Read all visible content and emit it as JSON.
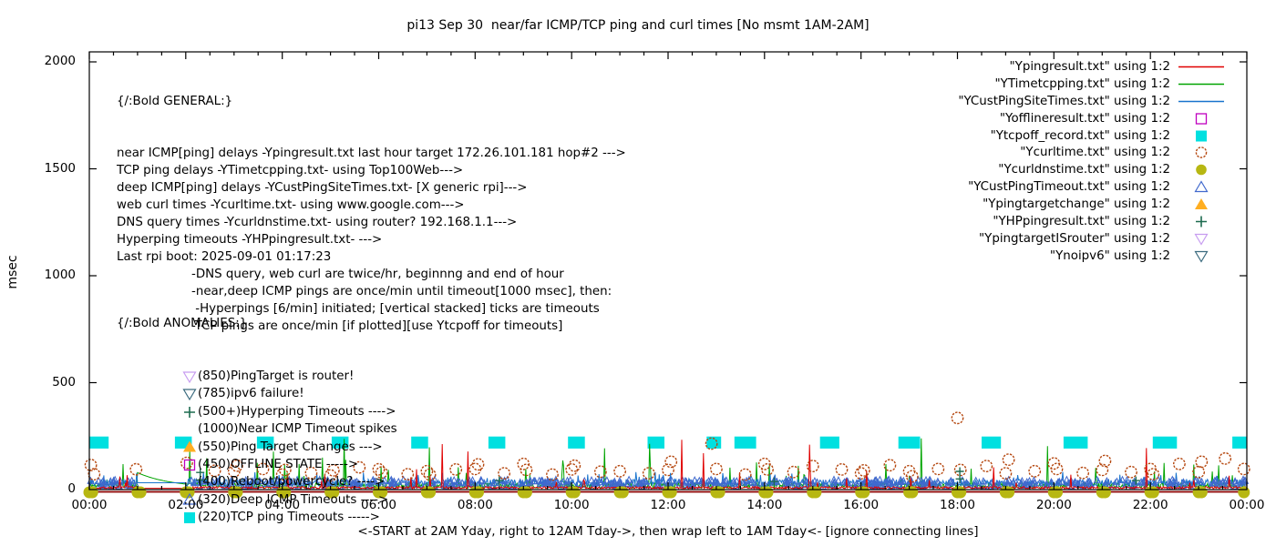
{
  "title": "pi13 Sep 30  near/far ICMP/TCP ping and curl times [No msmt 1AM-2AM]",
  "y_axis": {
    "label": "msec",
    "ticks": [
      "0",
      "500",
      "1000",
      "1500",
      "2000"
    ],
    "tick_values": [
      0,
      500,
      1000,
      1500,
      2000
    ],
    "max": 2000
  },
  "x_axis": {
    "label": "<-START at 2AM Yday, right to 12AM Tday->, then wrap left to 1AM Tday<- [ignore connecting lines]",
    "ticks": [
      "00:00",
      "02:00",
      "04:00",
      "06:00",
      "08:00",
      "10:00",
      "12:00",
      "14:00",
      "16:00",
      "18:00",
      "20:00",
      "22:00",
      "00:00"
    ],
    "tick_hours": [
      0,
      2,
      4,
      6,
      8,
      10,
      12,
      14,
      16,
      18,
      20,
      22,
      24
    ],
    "hours": 24
  },
  "legend": {
    "items": [
      {
        "label": "\"Ypingresult.txt\" using 1:2",
        "marker": "line",
        "color": "#e00000"
      },
      {
        "label": "\"YTimetcpping.txt\" using 1:2",
        "marker": "line",
        "color": "#00a400"
      },
      {
        "label": "\"YCustPingSiteTimes.txt\" using 1:2",
        "marker": "line",
        "color": "#1874cd"
      },
      {
        "label": "\"Yofflineresult.txt\" using 1:2",
        "marker": "square-open",
        "color": "#bf00bf"
      },
      {
        "label": "\"Ytcpoff_record.txt\" using 1:2",
        "marker": "square-filled",
        "color": "#00e0e0"
      },
      {
        "label": "\"Ycurltime.txt\" using 1:2",
        "marker": "circle-open",
        "color": "#b5470f"
      },
      {
        "label": "\"Ycurldnstime.txt\" using 1:2",
        "marker": "circle-filled",
        "color": "#b7b712"
      },
      {
        "label": "\"YCustPingTimeout.txt\" using 1:2",
        "marker": "triangle-up-open",
        "color": "#4169cd"
      },
      {
        "label": "\"Ypingtargetchange\" using 1:2",
        "marker": "triangle-up-filled",
        "color": "#ffae21"
      },
      {
        "label": "\"YHPpingresult.txt\" using 1:2",
        "marker": "plus",
        "color": "#1d6b4f"
      },
      {
        "label": "\"YpingtargetISrouter\" using 1:2",
        "marker": "triangle-down-open",
        "color": "#c79cf0"
      },
      {
        "label": "\"Ynoipv6\" using 1:2",
        "marker": "triangle-down-open",
        "color": "#3a6a7e"
      }
    ]
  },
  "notes_general": {
    "heading": "{/:Bold GENERAL:}",
    "lines": [
      "near ICMP[ping] delays -Ypingresult.txt last hour target 172.26.101.181 hop#2 --->",
      "TCP ping delays -YTimetcpping.txt- using Top100Web--->",
      "deep ICMP[ping] delays -YCustPingSiteTimes.txt- [X generic rpi]--->",
      "web curl times -Ycurltime.txt- using www.google.com--->",
      "DNS query times -Ycurldnstime.txt- using router? 192.168.1.1--->",
      "Hyperping timeouts -YHPpingresult.txt- --->",
      "Last rpi boot: 2025-09-01 01:17:23"
    ],
    "sub_lines": [
      "-DNS query, web curl are twice/hr, beginnng and end of hour",
      "-near,deep ICMP pings are once/min until timeout[1000 msec], then:",
      " -Hyperpings [6/min] initiated; [vertical stacked] ticks are timeouts",
      "-TCP pings are once/min [if plotted][use Ytcpoff for timeouts]"
    ]
  },
  "notes_anomalies": {
    "heading": "{/:Bold ANOMALIES:}",
    "items": [
      {
        "marker": "triangle-down-open",
        "color": "#c79cf0",
        "text": "(850)PingTarget is router!"
      },
      {
        "marker": "triangle-down-open",
        "color": "#3a6a7e",
        "text": "(785)ipv6 failure!"
      },
      {
        "marker": "plus",
        "color": "#1d6b4f",
        "text": "(500+)Hyperping Timeouts ---->"
      },
      {
        "marker": "none",
        "color": "",
        "text": "(1000)Near ICMP Timeout spikes"
      },
      {
        "marker": "triangle-up-filled",
        "color": "#ffae21",
        "text": "(550)Ping Target Changes --->"
      },
      {
        "marker": "square-open",
        "color": "#bf00bf",
        "text": "(450)OFFLINE STATE ----->"
      },
      {
        "marker": "none",
        "color": "",
        "text": "(400)Reboot/powercycle? ---->"
      },
      {
        "marker": "triangle-up-open",
        "color": "#4169cd",
        "text": "(320)Deep ICMP Timeouts ---->"
      },
      {
        "marker": "square-filled",
        "color": "#00e0e0",
        "text": "(220)TCP ping Timeouts ----->"
      }
    ]
  },
  "chart_data": {
    "type": "line",
    "x_unit": "hour_of_day",
    "y_unit": "msec",
    "x_range": [
      0,
      24
    ],
    "y_range": [
      0,
      2000
    ],
    "measurement_gap": {
      "start_hour": 1,
      "end_hour": 2,
      "label": "No msmt 1AM-2AM"
    },
    "series": [
      {
        "name": "Ypingresult.txt",
        "type": "noise_line",
        "color": "#e00000",
        "baseline": 4,
        "noise": 10,
        "mid_spike": {
          "rate": 0.015,
          "min": 30,
          "max": 90
        },
        "tall_spike": {
          "rate": 0.005,
          "min": 90,
          "max": 240
        },
        "gap_value": 6,
        "zero_row": true
      },
      {
        "name": "YTimetcpping.txt",
        "type": "noise_line",
        "color": "#00a400",
        "baseline": 6,
        "noise": 26,
        "mid_spike": {
          "rate": 0.03,
          "min": 40,
          "max": 130
        },
        "tall_spike": {
          "rate": 0.007,
          "min": 130,
          "max": 260
        },
        "gap_decay": {
          "start": 70,
          "floor": 9,
          "tau": 0.7
        }
      },
      {
        "name": "YCustPingSiteTimes.txt",
        "type": "noise_line",
        "color": "#1874cd",
        "baseline": 14,
        "noise": 34,
        "mid_spike": {
          "rate": 0.04,
          "min": 45,
          "max": 85
        },
        "gap_value": 32
      },
      {
        "name": "Yofflineresult.txt",
        "type": "scatter",
        "marker": "square-open",
        "color": "#bf00bf",
        "points": []
      },
      {
        "name": "Ytcpoff_record.txt",
        "type": "blocks",
        "color": "#00e0e0",
        "level": 220,
        "half_height": 28,
        "blocks": [
          [
            0.2,
            0.4
          ],
          [
            1.95,
            0.35
          ],
          [
            3.65,
            0.35
          ],
          [
            5.2,
            0.35
          ],
          [
            6.85,
            0.35
          ],
          [
            8.45,
            0.35
          ],
          [
            10.1,
            0.35
          ],
          [
            11.75,
            0.35
          ],
          [
            12.95,
            0.3
          ],
          [
            13.6,
            0.45
          ],
          [
            15.35,
            0.4
          ],
          [
            17.0,
            0.45
          ],
          [
            18.7,
            0.4
          ],
          [
            20.45,
            0.5
          ],
          [
            22.3,
            0.5
          ],
          [
            23.85,
            0.3
          ]
        ]
      },
      {
        "name": "Ycurltime.txt",
        "type": "scatter",
        "marker": "circle-open",
        "color": "#b5470f",
        "points": [
          [
            0.03,
            115
          ],
          [
            0.1,
            72
          ],
          [
            0.97,
            95
          ],
          [
            2.02,
            125
          ],
          [
            2.6,
            88
          ],
          [
            3.0,
            85
          ],
          [
            3.06,
            112
          ],
          [
            3.6,
            96
          ],
          [
            4.0,
            70
          ],
          [
            4.06,
            92
          ],
          [
            4.6,
            78
          ],
          [
            5.0,
            66
          ],
          [
            5.06,
            90
          ],
          [
            5.6,
            104
          ],
          [
            6.0,
            95
          ],
          [
            6.06,
            80
          ],
          [
            6.6,
            72
          ],
          [
            7.0,
            86
          ],
          [
            7.06,
            70
          ],
          [
            7.6,
            94
          ],
          [
            8.0,
            96
          ],
          [
            8.06,
            118
          ],
          [
            8.6,
            76
          ],
          [
            9.0,
            120
          ],
          [
            9.06,
            92
          ],
          [
            9.6,
            70
          ],
          [
            10.0,
            94
          ],
          [
            10.06,
            112
          ],
          [
            10.6,
            84
          ],
          [
            11.0,
            86
          ],
          [
            11.6,
            76
          ],
          [
            12.0,
            92
          ],
          [
            12.06,
            130
          ],
          [
            12.9,
            215
          ],
          [
            13.0,
            96
          ],
          [
            13.6,
            70
          ],
          [
            14.0,
            120
          ],
          [
            14.06,
            94
          ],
          [
            14.6,
            82
          ],
          [
            15.0,
            110
          ],
          [
            15.6,
            94
          ],
          [
            16.0,
            76
          ],
          [
            16.06,
            90
          ],
          [
            16.6,
            114
          ],
          [
            17.0,
            86
          ],
          [
            17.06,
            62
          ],
          [
            17.6,
            96
          ],
          [
            18.0,
            335
          ],
          [
            18.06,
            92
          ],
          [
            18.6,
            110
          ],
          [
            19.0,
            76
          ],
          [
            19.06,
            140
          ],
          [
            19.6,
            86
          ],
          [
            20.0,
            122
          ],
          [
            20.06,
            96
          ],
          [
            20.6,
            78
          ],
          [
            21.0,
            92
          ],
          [
            21.06,
            134
          ],
          [
            21.6,
            82
          ],
          [
            22.0,
            96
          ],
          [
            22.06,
            72
          ],
          [
            22.6,
            120
          ],
          [
            23.0,
            82
          ],
          [
            23.06,
            130
          ],
          [
            23.55,
            145
          ],
          [
            23.94,
            96
          ]
        ]
      },
      {
        "name": "Ycurldnstime.txt",
        "type": "scatter_hours",
        "marker": "circle-filled",
        "color": "#b7b712",
        "level": 0,
        "hours": [
          0,
          0.06,
          1,
          1.06,
          2,
          2.06,
          3,
          3.06,
          4,
          4.06,
          5,
          5.06,
          6,
          6.06,
          7,
          7.06,
          8,
          8.06,
          9,
          9.06,
          10,
          10.06,
          11,
          11.06,
          12,
          12.06,
          13,
          13.06,
          14,
          14.06,
          15,
          15.06,
          16,
          16.06,
          17,
          17.06,
          18,
          18.06,
          19,
          19.06,
          20,
          20.06,
          21,
          21.06,
          22,
          22.06,
          23,
          23.06,
          23.94
        ]
      },
      {
        "name": "YCustPingTimeout.txt",
        "type": "scatter_band",
        "marker": "triangle-up-open",
        "color": "#4169cd",
        "count": 520,
        "band": [
          14,
          46
        ]
      },
      {
        "name": "Ypingtargetchange",
        "type": "scatter",
        "marker": "triangle-up-filled",
        "color": "#ffae21",
        "points": []
      },
      {
        "name": "YHPpingresult.txt",
        "type": "scatter",
        "marker": "plus",
        "color": "#1d6b4f",
        "points": [
          [
            2.3,
            45
          ],
          [
            2.3,
            80
          ],
          [
            8.5,
            42
          ],
          [
            14.2,
            38
          ],
          [
            18.05,
            50
          ],
          [
            18.05,
            85
          ],
          [
            21.7,
            42
          ]
        ]
      },
      {
        "name": "YpingtargetISrouter",
        "type": "scatter",
        "marker": "triangle-down-open",
        "color": "#c79cf0",
        "points": []
      },
      {
        "name": "Ynoipv6",
        "type": "scatter",
        "marker": "triangle-down-open",
        "color": "#3a6a7e",
        "points": []
      }
    ]
  }
}
